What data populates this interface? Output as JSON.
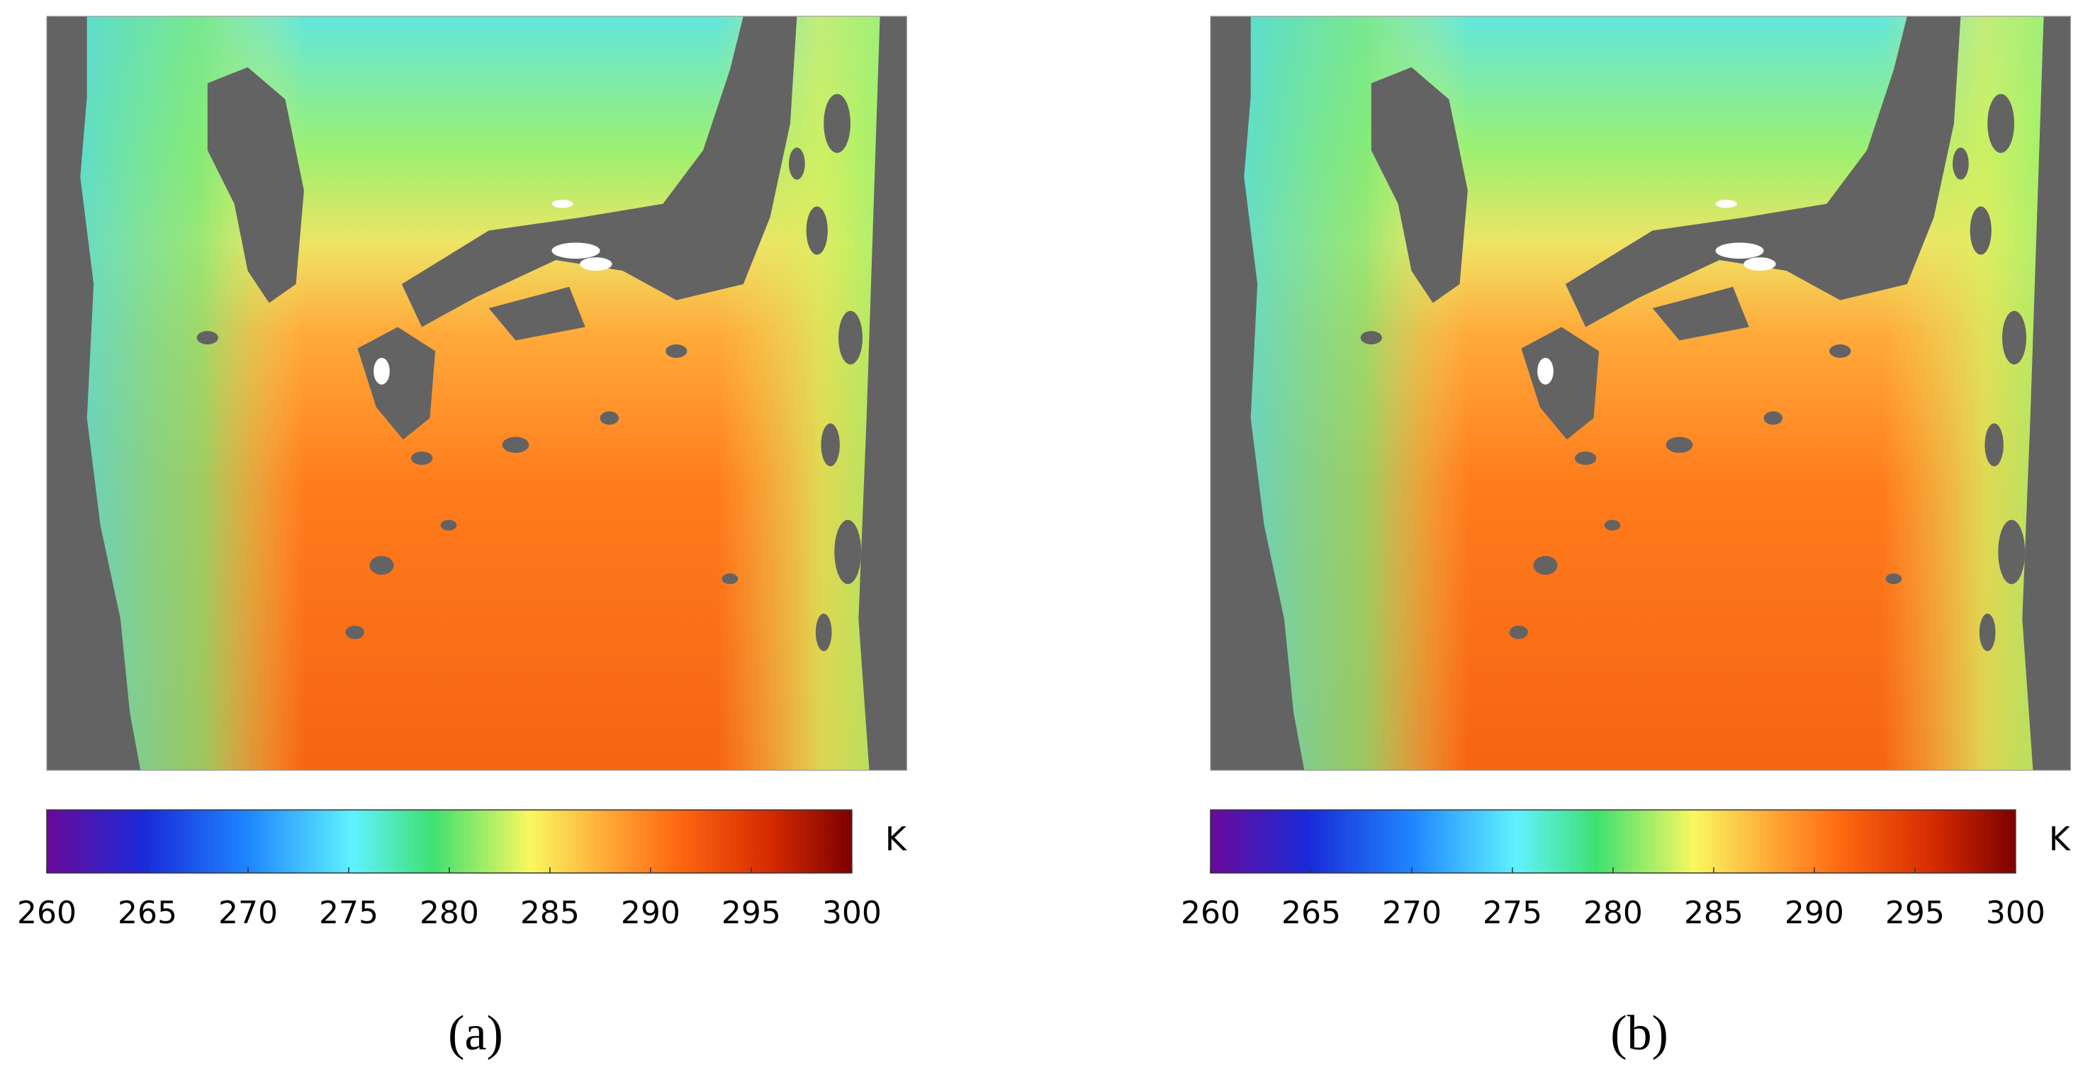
{
  "panels": [
    {
      "label": "(a)",
      "colorbar": {
        "lim": [
          260,
          300
        ],
        "ticks": [
          260,
          265,
          270,
          275,
          280,
          285,
          290,
          295,
          300
        ],
        "unit": "K"
      }
    },
    {
      "label": "(b)",
      "colorbar": {
        "lim": [
          260,
          300
        ],
        "ticks": [
          260,
          265,
          270,
          275,
          280,
          285,
          290,
          295,
          300
        ],
        "unit": "K"
      }
    }
  ]
}
